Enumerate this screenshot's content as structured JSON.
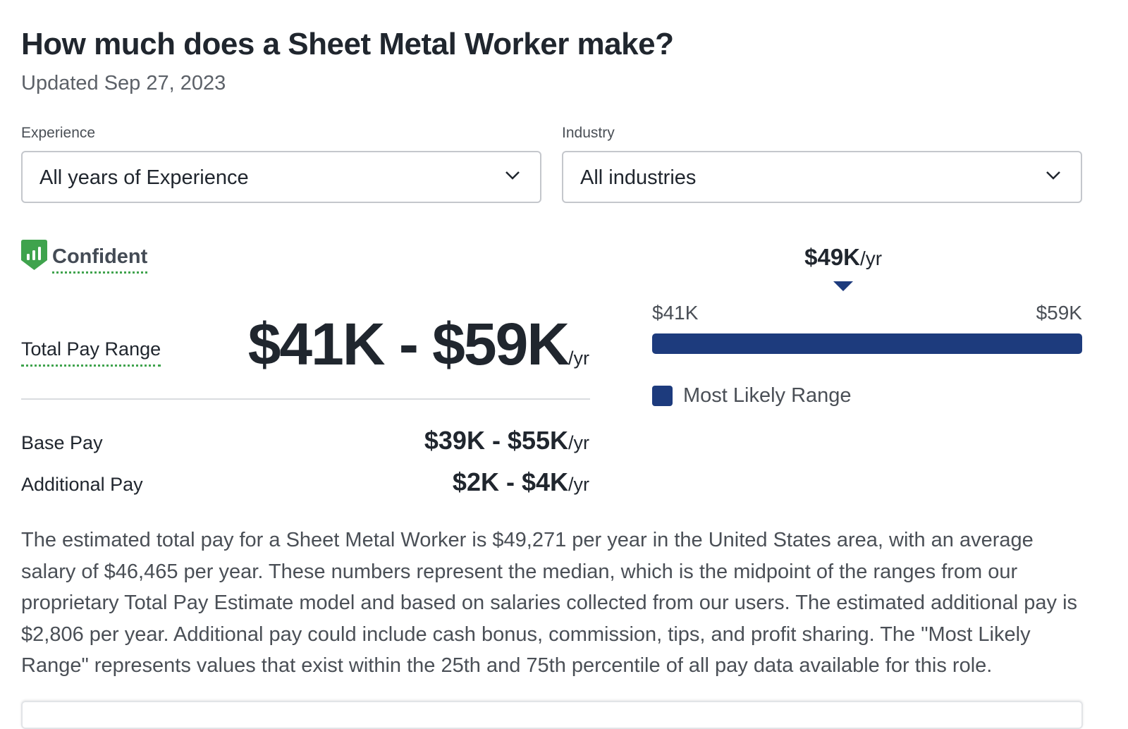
{
  "title": "How much does a Sheet Metal Worker make?",
  "updated": "Updated Sep 27, 2023",
  "filters": {
    "experience_label": "Experience",
    "experience_value": "All years of Experience",
    "industry_label": "Industry",
    "industry_value": "All industries"
  },
  "confidence": "Confident",
  "total": {
    "label": "Total Pay Range",
    "value": "$41K - $59K",
    "unit": "/yr"
  },
  "base": {
    "label": "Base Pay",
    "value": "$39K - $55K",
    "unit": "/yr"
  },
  "additional": {
    "label": "Additional Pay",
    "value": "$2K - $4K",
    "unit": "/yr"
  },
  "range_chart": {
    "median": "$49K",
    "median_unit": "/yr",
    "low": "$41K",
    "high": "$59K",
    "legend": "Most Likely Range",
    "color": "#1d3b7d",
    "median_k": 49,
    "low_k": 41,
    "high_k": 59
  },
  "description": "The estimated total pay for a Sheet Metal Worker is $49,271 per year in the United States area, with an average salary of $46,465 per year. These numbers represent the median, which is the midpoint of the ranges from our proprietary Total Pay Estimate model and based on salaries collected from our users. The estimated additional pay is $2,806 per year. Additional pay could include cash bonus, commission, tips, and profit sharing. The \"Most Likely Range\" represents values that exist within the 25th and 75th percentile of all pay data available for this role."
}
